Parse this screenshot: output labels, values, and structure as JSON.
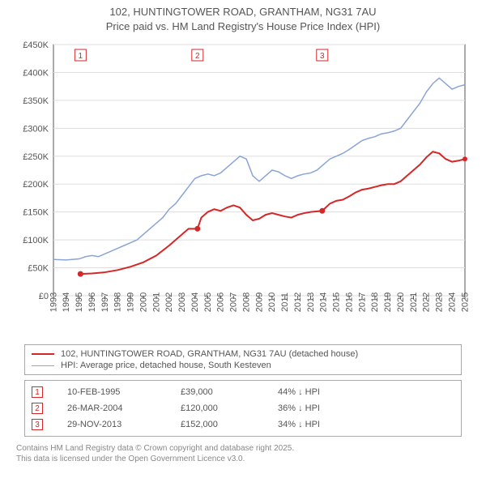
{
  "title_line1": "102, HUNTINGTOWER ROAD, GRANTHAM, NG31 7AU",
  "title_line2": "Price paid vs. HM Land Registry's House Price Index (HPI)",
  "chart": {
    "type": "line",
    "background_color": "#ffffff",
    "plot_bg": "#ffffff",
    "axis_color": "#555555",
    "grid_color": "#dddddd",
    "label_color": "#555555",
    "ylabel_prefix": "£",
    "ylim": [
      0,
      450000
    ],
    "ytick_step": 50000,
    "yticks": [
      "£0",
      "£50K",
      "£100K",
      "£150K",
      "£200K",
      "£250K",
      "£300K",
      "£350K",
      "£400K",
      "£450K"
    ],
    "xlim": [
      1993,
      2025
    ],
    "xtick_step": 1,
    "xticks": [
      "1993",
      "1994",
      "1995",
      "1996",
      "1997",
      "1998",
      "1999",
      "2000",
      "2001",
      "2002",
      "2003",
      "2004",
      "2005",
      "2006",
      "2007",
      "2008",
      "2009",
      "2010",
      "2011",
      "2012",
      "2013",
      "2014",
      "2015",
      "2016",
      "2017",
      "2018",
      "2019",
      "2020",
      "2021",
      "2022",
      "2023",
      "2024",
      "2025"
    ],
    "rotate_xticks": -90,
    "axis_fontsize": 11,
    "series": [
      {
        "id": "hpi",
        "label": "HPI: Average price, detached house, South Kesteven",
        "color": "#8aa4d6",
        "width": 1.5,
        "points": [
          [
            1993.0,
            65000
          ],
          [
            1994.0,
            64000
          ],
          [
            1995.0,
            66000
          ],
          [
            1995.5,
            70000
          ],
          [
            1996.0,
            72000
          ],
          [
            1996.5,
            70000
          ],
          [
            1997.0,
            75000
          ],
          [
            1997.5,
            80000
          ],
          [
            1998.0,
            85000
          ],
          [
            1998.5,
            90000
          ],
          [
            1999.0,
            95000
          ],
          [
            1999.5,
            100000
          ],
          [
            2000.0,
            110000
          ],
          [
            2000.5,
            120000
          ],
          [
            2001.0,
            130000
          ],
          [
            2001.5,
            140000
          ],
          [
            2002.0,
            155000
          ],
          [
            2002.5,
            165000
          ],
          [
            2003.0,
            180000
          ],
          [
            2003.5,
            195000
          ],
          [
            2004.0,
            210000
          ],
          [
            2004.5,
            215000
          ],
          [
            2005.0,
            218000
          ],
          [
            2005.5,
            215000
          ],
          [
            2006.0,
            220000
          ],
          [
            2006.5,
            230000
          ],
          [
            2007.0,
            240000
          ],
          [
            2007.5,
            250000
          ],
          [
            2008.0,
            245000
          ],
          [
            2008.5,
            215000
          ],
          [
            2009.0,
            205000
          ],
          [
            2009.5,
            215000
          ],
          [
            2010.0,
            225000
          ],
          [
            2010.5,
            222000
          ],
          [
            2011.0,
            215000
          ],
          [
            2011.5,
            210000
          ],
          [
            2012.0,
            215000
          ],
          [
            2012.5,
            218000
          ],
          [
            2013.0,
            220000
          ],
          [
            2013.5,
            225000
          ],
          [
            2014.0,
            235000
          ],
          [
            2014.5,
            245000
          ],
          [
            2015.0,
            250000
          ],
          [
            2015.5,
            255000
          ],
          [
            2016.0,
            262000
          ],
          [
            2016.5,
            270000
          ],
          [
            2017.0,
            278000
          ],
          [
            2017.5,
            282000
          ],
          [
            2018.0,
            285000
          ],
          [
            2018.5,
            290000
          ],
          [
            2019.0,
            292000
          ],
          [
            2019.5,
            295000
          ],
          [
            2020.0,
            300000
          ],
          [
            2020.5,
            315000
          ],
          [
            2021.0,
            330000
          ],
          [
            2021.5,
            345000
          ],
          [
            2022.0,
            365000
          ],
          [
            2022.5,
            380000
          ],
          [
            2023.0,
            390000
          ],
          [
            2023.5,
            380000
          ],
          [
            2024.0,
            370000
          ],
          [
            2024.5,
            375000
          ],
          [
            2025.0,
            378000
          ]
        ]
      },
      {
        "id": "property",
        "label": "102, HUNTINGTOWER ROAD, GRANTHAM, NG31 7AU (detached house)",
        "color": "#d62728",
        "width": 2,
        "points": [
          [
            1995.1,
            39000
          ],
          [
            1996.0,
            40000
          ],
          [
            1997.0,
            42000
          ],
          [
            1998.0,
            46000
          ],
          [
            1999.0,
            52000
          ],
          [
            2000.0,
            60000
          ],
          [
            2001.0,
            72000
          ],
          [
            2002.0,
            90000
          ],
          [
            2002.5,
            100000
          ],
          [
            2003.0,
            110000
          ],
          [
            2003.5,
            120000
          ],
          [
            2004.2,
            120000
          ],
          [
            2004.5,
            140000
          ],
          [
            2005.0,
            150000
          ],
          [
            2005.5,
            155000
          ],
          [
            2006.0,
            152000
          ],
          [
            2006.5,
            158000
          ],
          [
            2007.0,
            162000
          ],
          [
            2007.5,
            158000
          ],
          [
            2008.0,
            145000
          ],
          [
            2008.5,
            135000
          ],
          [
            2009.0,
            138000
          ],
          [
            2009.5,
            145000
          ],
          [
            2010.0,
            148000
          ],
          [
            2010.5,
            145000
          ],
          [
            2011.0,
            142000
          ],
          [
            2011.5,
            140000
          ],
          [
            2012.0,
            145000
          ],
          [
            2012.5,
            148000
          ],
          [
            2013.0,
            150000
          ],
          [
            2013.9,
            152000
          ],
          [
            2014.5,
            165000
          ],
          [
            2015.0,
            170000
          ],
          [
            2015.5,
            172000
          ],
          [
            2016.0,
            178000
          ],
          [
            2016.5,
            185000
          ],
          [
            2017.0,
            190000
          ],
          [
            2017.5,
            192000
          ],
          [
            2018.0,
            195000
          ],
          [
            2018.5,
            198000
          ],
          [
            2019.0,
            200000
          ],
          [
            2019.5,
            200000
          ],
          [
            2020.0,
            205000
          ],
          [
            2020.5,
            215000
          ],
          [
            2021.0,
            225000
          ],
          [
            2021.5,
            235000
          ],
          [
            2022.0,
            248000
          ],
          [
            2022.5,
            258000
          ],
          [
            2023.0,
            255000
          ],
          [
            2023.5,
            245000
          ],
          [
            2024.0,
            240000
          ],
          [
            2024.5,
            242000
          ],
          [
            2025.0,
            245000
          ]
        ]
      }
    ],
    "sale_markers": [
      {
        "n": "1",
        "year": 1995.1,
        "y": 39000
      },
      {
        "n": "2",
        "year": 2004.2,
        "y": 120000
      },
      {
        "n": "3",
        "year": 2013.9,
        "y": 152000
      }
    ],
    "marker_border": "#d62728",
    "marker_text_color": "#d62728",
    "marker_size": 14
  },
  "legend": [
    {
      "color": "#d62728",
      "width": 2,
      "label": "102, HUNTINGTOWER ROAD, GRANTHAM, NG31 7AU (detached house)"
    },
    {
      "color": "#8aa4d6",
      "width": 1.5,
      "label": "HPI: Average price, detached house, South Kesteven"
    }
  ],
  "sales": [
    {
      "n": "1",
      "date": "10-FEB-1995",
      "price": "£39,000",
      "diff": "44% ↓ HPI"
    },
    {
      "n": "2",
      "date": "26-MAR-2004",
      "price": "£120,000",
      "diff": "36% ↓ HPI"
    },
    {
      "n": "3",
      "date": "29-NOV-2013",
      "price": "£152,000",
      "diff": "34% ↓ HPI"
    }
  ],
  "footer_line1": "Contains HM Land Registry data © Crown copyright and database right 2025.",
  "footer_line2": "This data is licensed under the Open Government Licence v3.0."
}
